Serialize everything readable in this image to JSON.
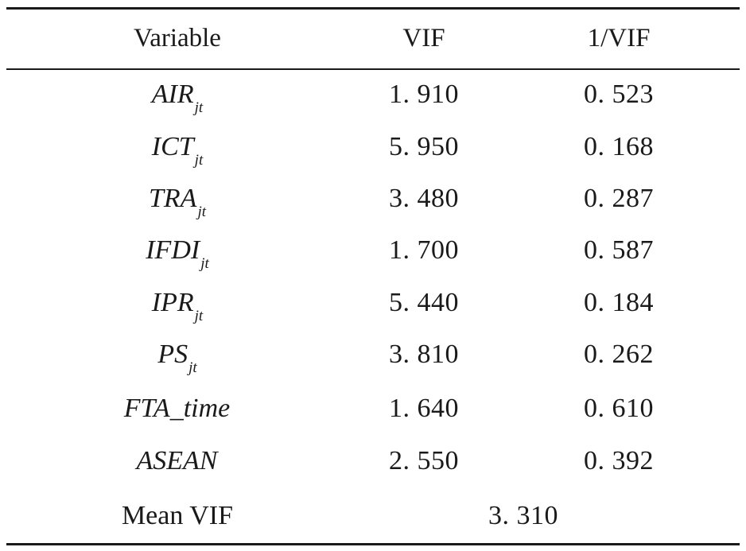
{
  "table": {
    "headers": [
      "Variable",
      "VIF",
      "1/VIF"
    ],
    "rows": [
      {
        "variable": "AIR",
        "sub": "jt",
        "vif": "1. 910",
        "inv": "0. 523"
      },
      {
        "variable": "ICT",
        "sub": "jt",
        "vif": "5. 950",
        "inv": "0. 168"
      },
      {
        "variable": "TRA",
        "sub": "jt",
        "vif": "3. 480",
        "inv": "0. 287"
      },
      {
        "variable": "IFDI",
        "sub": "jt",
        "vif": "1. 700",
        "inv": "0. 587"
      },
      {
        "variable": "IPR",
        "sub": "jt",
        "vif": "5. 440",
        "inv": "0. 184"
      },
      {
        "variable": "PS",
        "sub": "jt",
        "vif": "3. 810",
        "inv": "0. 262"
      },
      {
        "variable": "FTA_time",
        "sub": "",
        "vif": "1. 640",
        "inv": "0. 610"
      },
      {
        "variable": "ASEAN",
        "sub": "",
        "vif": "2. 550",
        "inv": "0. 392"
      }
    ],
    "mean": {
      "label": "Mean VIF",
      "value": "3. 310"
    }
  }
}
